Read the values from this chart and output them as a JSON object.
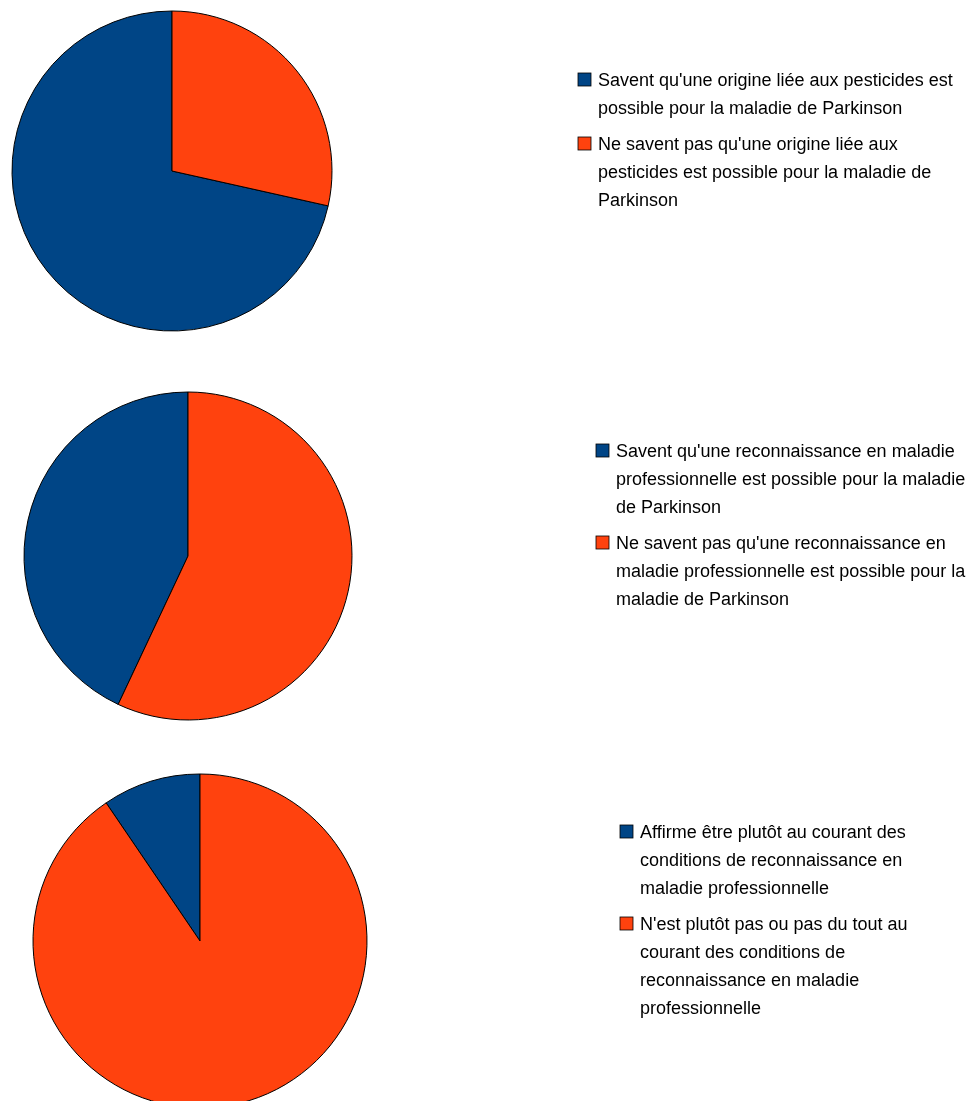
{
  "chart_data": [
    {
      "type": "pie",
      "categories": [
        "Savent qu'une origine liée aux pesticides est possible pour la maladie de Parkinson",
        "Ne savent pas qu'une origine liée aux pesticides est possible pour la maladie de Parkinson"
      ],
      "values": [
        71.5,
        28.5
      ],
      "colors": [
        "#004586",
        "#ff420e"
      ],
      "legend": "right"
    },
    {
      "type": "pie",
      "categories": [
        "Savent qu'une reconnaissance en maladie professionnelle est possible pour la maladie de Parkinson",
        "Ne savent pas qu'une reconnaissance en maladie professionnelle est possible pour la maladie de Parkinson"
      ],
      "values": [
        43,
        57
      ],
      "colors": [
        "#004586",
        "#ff420e"
      ],
      "legend": "right"
    },
    {
      "type": "pie",
      "categories": [
        "Affirme être plutôt au courant des conditions de reconnaissance en maladie professionnelle",
        "N'est plutôt pas ou pas du tout au courant des conditions de reconnaissance en maladie professionnelle"
      ],
      "values": [
        9.5,
        90.5
      ],
      "colors": [
        "#004586",
        "#ff420e"
      ],
      "legend": "right"
    }
  ]
}
